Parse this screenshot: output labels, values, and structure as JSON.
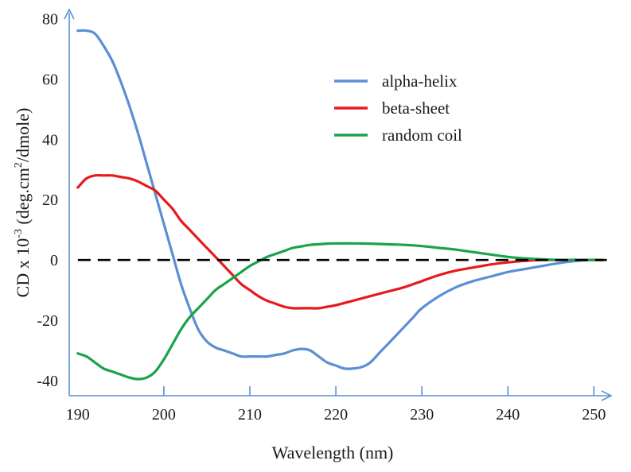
{
  "chart_data": {
    "type": "line",
    "xlabel": "Wavelength (nm)",
    "ylabel": {
      "prefix": "CD x 10",
      "exp1": "-3",
      "mid": " (deg.cm",
      "exp2": "2",
      "suffix": "/dmole)"
    },
    "xlim": [
      189,
      252
    ],
    "ylim": [
      -45,
      83
    ],
    "x_ticks": [
      190,
      200,
      210,
      220,
      230,
      240,
      250
    ],
    "y_ticks": [
      -40,
      -20,
      0,
      20,
      40,
      60,
      80
    ],
    "x_tick_labels": [
      "190",
      "200",
      "210",
      "220",
      "230",
      "240",
      "250"
    ],
    "y_tick_labels": [
      "-40",
      "-20",
      "0",
      "20",
      "40",
      "60",
      "80"
    ],
    "legend_position": "top-right",
    "reference_line": {
      "y": 0,
      "style": "dashed",
      "color": "#000000"
    },
    "axis_color": "#5b8fd4",
    "series": [
      {
        "name": "alpha-helix",
        "color": "#5b8fd4",
        "points": [
          [
            190,
            76
          ],
          [
            191,
            76
          ],
          [
            192,
            75
          ],
          [
            193,
            71
          ],
          [
            194,
            66
          ],
          [
            195,
            59
          ],
          [
            196,
            51
          ],
          [
            197,
            42
          ],
          [
            198,
            32
          ],
          [
            199,
            22
          ],
          [
            200,
            12
          ],
          [
            201,
            2
          ],
          [
            202,
            -8
          ],
          [
            203,
            -16
          ],
          [
            204,
            -23
          ],
          [
            205,
            -27
          ],
          [
            206,
            -29
          ],
          [
            207,
            -30
          ],
          [
            208,
            -31
          ],
          [
            209,
            -32
          ],
          [
            210,
            -32
          ],
          [
            211,
            -32
          ],
          [
            212,
            -32
          ],
          [
            213,
            -31.5
          ],
          [
            214,
            -31
          ],
          [
            215,
            -30
          ],
          [
            216,
            -29.5
          ],
          [
            217,
            -30
          ],
          [
            218,
            -32
          ],
          [
            219,
            -34
          ],
          [
            220,
            -35
          ],
          [
            221,
            -36
          ],
          [
            222,
            -36
          ],
          [
            223,
            -35.5
          ],
          [
            224,
            -34
          ],
          [
            225,
            -31
          ],
          [
            226,
            -28
          ],
          [
            227,
            -25
          ],
          [
            228,
            -22
          ],
          [
            229,
            -19
          ],
          [
            230,
            -16
          ],
          [
            232,
            -12
          ],
          [
            234,
            -9
          ],
          [
            236,
            -7
          ],
          [
            238,
            -5.5
          ],
          [
            240,
            -4
          ],
          [
            242,
            -3
          ],
          [
            244,
            -2
          ],
          [
            246,
            -1
          ],
          [
            248,
            -0.3
          ],
          [
            250,
            0
          ],
          [
            251,
            0
          ]
        ]
      },
      {
        "name": "beta-sheet",
        "color": "#e8191d",
        "points": [
          [
            190,
            24
          ],
          [
            191,
            27
          ],
          [
            192,
            28
          ],
          [
            193,
            28
          ],
          [
            194,
            28
          ],
          [
            195,
            27.5
          ],
          [
            196,
            27
          ],
          [
            197,
            26
          ],
          [
            198,
            24.5
          ],
          [
            199,
            23
          ],
          [
            200,
            20
          ],
          [
            201,
            17
          ],
          [
            202,
            13
          ],
          [
            203,
            10
          ],
          [
            204,
            7
          ],
          [
            205,
            4
          ],
          [
            206,
            1
          ],
          [
            207,
            -2
          ],
          [
            208,
            -5
          ],
          [
            209,
            -8
          ],
          [
            210,
            -10
          ],
          [
            211,
            -12
          ],
          [
            212,
            -13.5
          ],
          [
            213,
            -14.5
          ],
          [
            214,
            -15.5
          ],
          [
            215,
            -16
          ],
          [
            216,
            -16
          ],
          [
            217,
            -16
          ],
          [
            218,
            -16
          ],
          [
            219,
            -15.5
          ],
          [
            220,
            -15
          ],
          [
            222,
            -13.5
          ],
          [
            224,
            -12
          ],
          [
            226,
            -10.5
          ],
          [
            228,
            -9
          ],
          [
            230,
            -7
          ],
          [
            232,
            -5
          ],
          [
            234,
            -3.5
          ],
          [
            236,
            -2.5
          ],
          [
            238,
            -1.5
          ],
          [
            240,
            -0.8
          ],
          [
            242,
            -0.3
          ],
          [
            244,
            0
          ],
          [
            250,
            0
          ],
          [
            251,
            0
          ]
        ]
      },
      {
        "name": "random coil",
        "color": "#1aa34a",
        "points": [
          [
            190,
            -31
          ],
          [
            191,
            -32
          ],
          [
            192,
            -34
          ],
          [
            193,
            -36
          ],
          [
            194,
            -37
          ],
          [
            195,
            -38
          ],
          [
            196,
            -39
          ],
          [
            197,
            -39.5
          ],
          [
            198,
            -39
          ],
          [
            199,
            -37
          ],
          [
            200,
            -33
          ],
          [
            201,
            -28
          ],
          [
            202,
            -23
          ],
          [
            203,
            -19
          ],
          [
            204,
            -16
          ],
          [
            205,
            -13
          ],
          [
            206,
            -10
          ],
          [
            207,
            -8
          ],
          [
            208,
            -6
          ],
          [
            209,
            -4
          ],
          [
            210,
            -2
          ],
          [
            211,
            -0.5
          ],
          [
            212,
            1
          ],
          [
            213,
            2
          ],
          [
            214,
            3
          ],
          [
            215,
            4
          ],
          [
            216,
            4.5
          ],
          [
            217,
            5
          ],
          [
            218,
            5.2
          ],
          [
            219,
            5.4
          ],
          [
            220,
            5.5
          ],
          [
            222,
            5.5
          ],
          [
            224,
            5.4
          ],
          [
            226,
            5.2
          ],
          [
            228,
            5
          ],
          [
            230,
            4.6
          ],
          [
            232,
            4
          ],
          [
            234,
            3.4
          ],
          [
            236,
            2.6
          ],
          [
            238,
            1.8
          ],
          [
            240,
            1
          ],
          [
            242,
            0.5
          ],
          [
            244,
            0.2
          ],
          [
            246,
            0
          ],
          [
            250,
            0
          ],
          [
            251,
            0
          ]
        ]
      }
    ]
  }
}
